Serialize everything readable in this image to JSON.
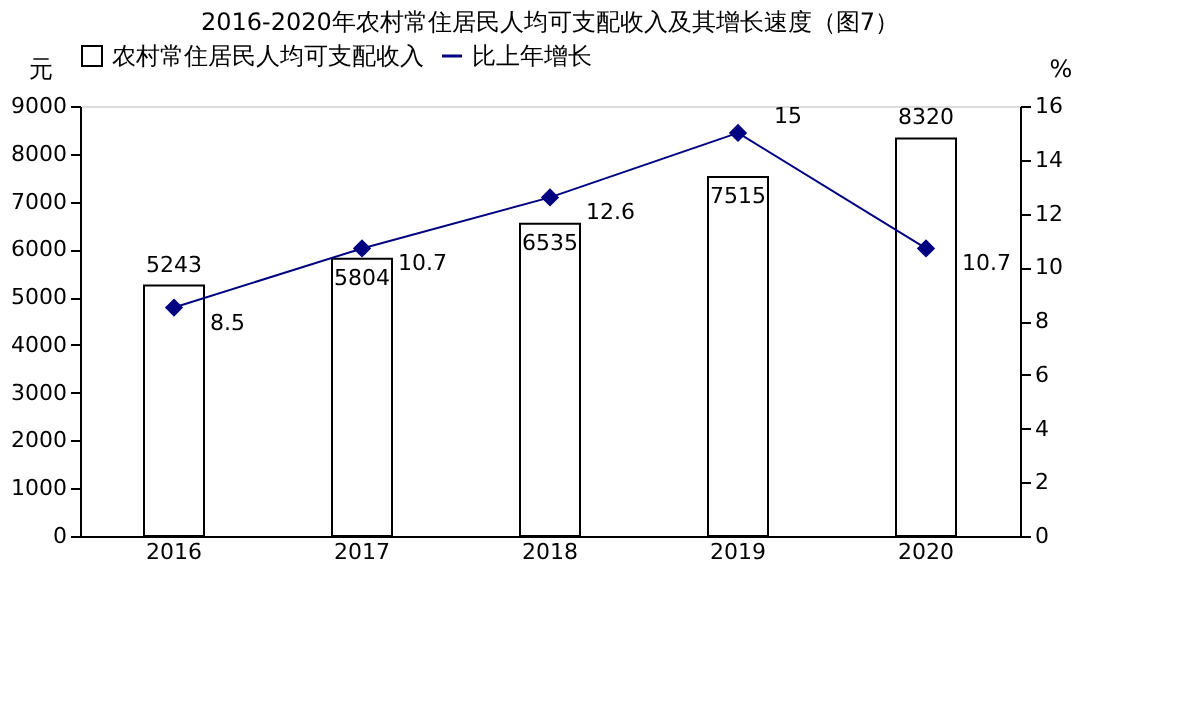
{
  "chart_data": {
    "type": "bar",
    "title": "2016-2020年农村常住居民人均可支配收入及其增长速度（图7）",
    "categories": [
      "2016",
      "2017",
      "2018",
      "2019",
      "2020"
    ],
    "series": [
      {
        "name": "农村常住居民人均可支配收入",
        "color": "#ffffff",
        "values": [
          5243,
          5804,
          6535,
          7515,
          8320
        ]
      },
      {
        "name": "比上年增长",
        "type": "line",
        "axis": "y2",
        "color": "#000080",
        "marker": "diamond",
        "values": [
          8.5,
          10.7,
          12.6,
          15,
          10.7
        ]
      }
    ],
    "ylabel": "元",
    "y2label": "%",
    "ylim": [
      0,
      9000
    ],
    "yticks": [
      0,
      1000,
      2000,
      3000,
      4000,
      5000,
      6000,
      7000,
      8000,
      9000
    ],
    "y2lim": [
      0,
      16
    ],
    "y2ticks": [
      0,
      2,
      4,
      6,
      8,
      10,
      12,
      14,
      16
    ],
    "data_labels": true,
    "legend": "top",
    "grid": false
  }
}
